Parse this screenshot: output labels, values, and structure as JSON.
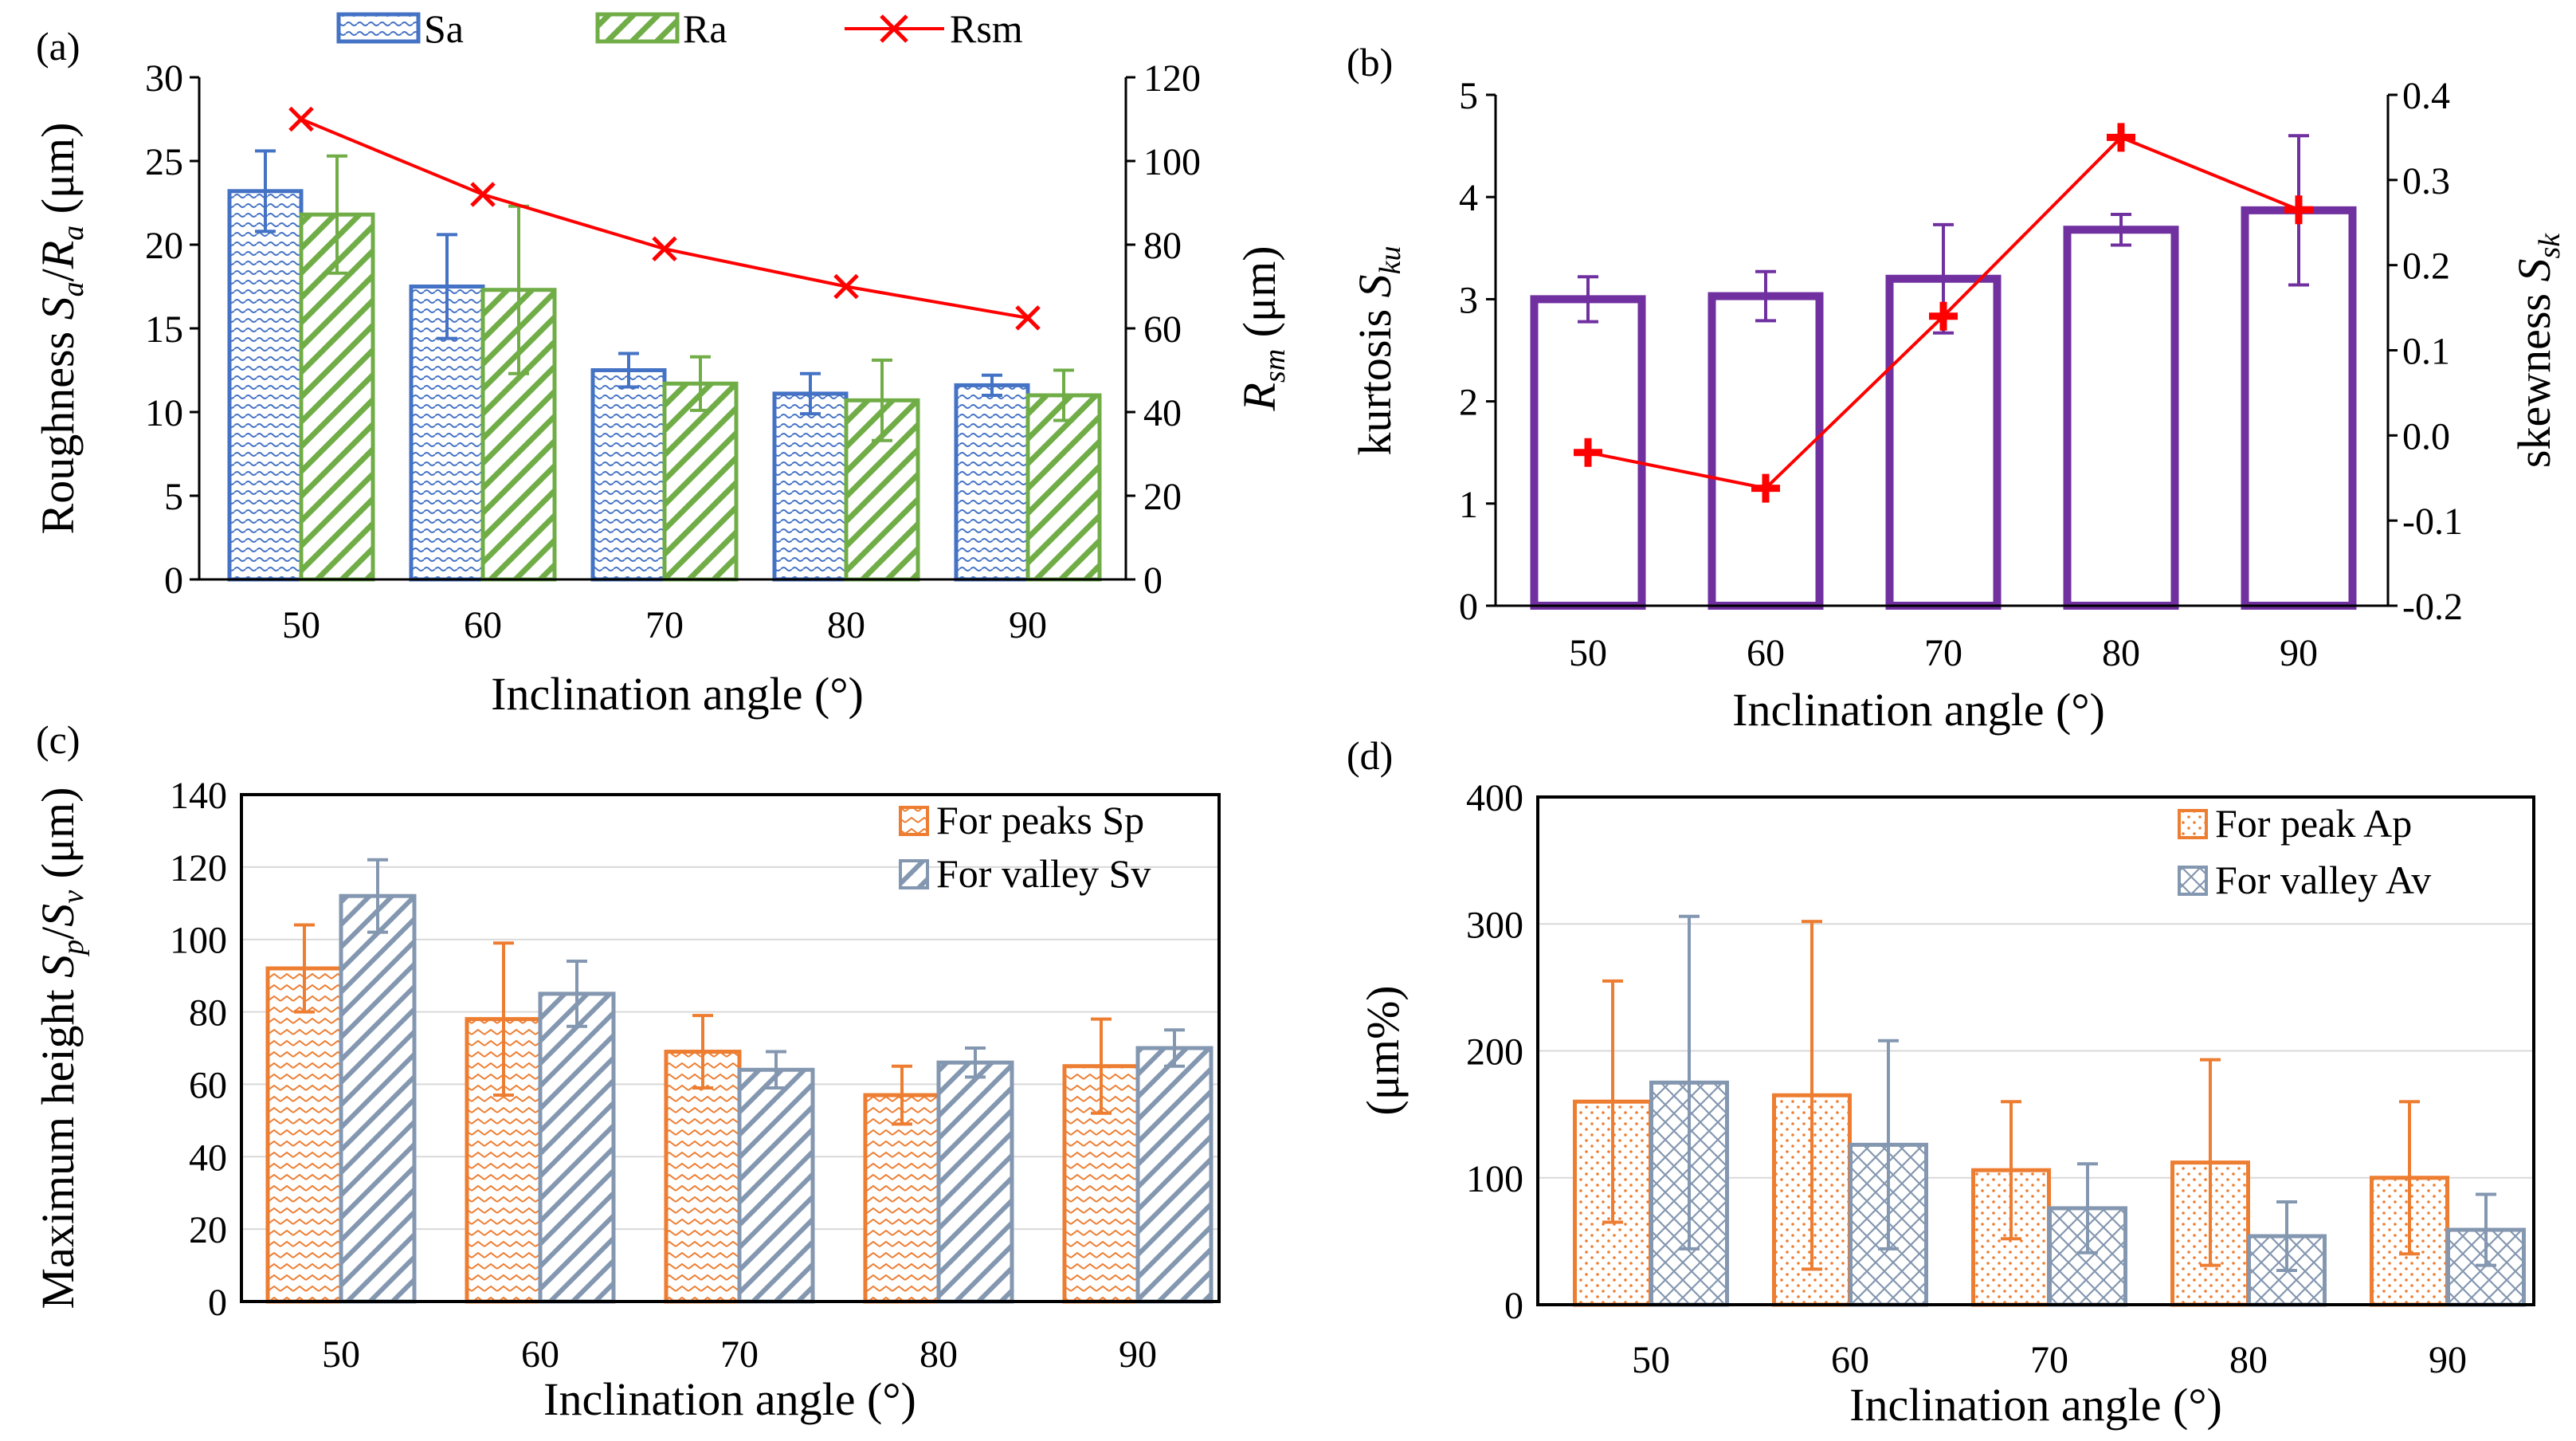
{
  "chart_data": [
    {
      "type": "bar",
      "panel": "(a)",
      "categories": [
        "50",
        "60",
        "70",
        "80",
        "90"
      ],
      "xlabel": "Inclination angle (°)",
      "ylabel": {
        "pre": "Roughness ",
        "v1": "S",
        "s1": "a",
        "mid": "/",
        "v2": "R",
        "s2": "a",
        "post": " (μm)"
      },
      "y2label": {
        "v1": "R",
        "s1": "sm",
        "post": " (μm)"
      },
      "ylim": [
        0,
        30
      ],
      "yticks": [
        "0",
        "5",
        "10",
        "15",
        "20",
        "25",
        "30"
      ],
      "y2lim": [
        0,
        120
      ],
      "y2ticks": [
        "0",
        "20",
        "40",
        "60",
        "80",
        "100",
        "120"
      ],
      "series": [
        {
          "name": "Sa",
          "kind": "bar",
          "color": "#4472c4",
          "values": [
            23.2,
            17.5,
            12.5,
            11.1,
            11.6
          ],
          "err": [
            2.4,
            3.1,
            1.0,
            1.2,
            0.6
          ]
        },
        {
          "name": "Ra",
          "kind": "bar",
          "color": "#70ad47",
          "values": [
            21.8,
            17.3,
            11.7,
            10.7,
            11.0
          ],
          "err": [
            3.5,
            5.0,
            1.6,
            2.4,
            1.5
          ]
        },
        {
          "name": "Rsm",
          "kind": "line",
          "axis": "right",
          "color": "#ff0000",
          "values": [
            110,
            92,
            79,
            70,
            62.5
          ]
        }
      ]
    },
    {
      "type": "bar",
      "panel": "(b)",
      "categories": [
        "50",
        "60",
        "70",
        "80",
        "90"
      ],
      "xlabel": "Inclination angle (°)",
      "ylabel": {
        "pre": "kurtosis ",
        "v1": "S",
        "s1": "ku"
      },
      "y2label": {
        "pre": "skewness ",
        "v1": "S",
        "s1": "sk"
      },
      "ylim": [
        0,
        5
      ],
      "yticks": [
        "0",
        "1",
        "2",
        "3",
        "4",
        "5"
      ],
      "y2lim": [
        -0.2,
        0.4
      ],
      "y2ticks": [
        "-0.2",
        "-0.1",
        "0.0",
        "0.1",
        "0.2",
        "0.3",
        "0.4"
      ],
      "series": [
        {
          "name": "kurtosis",
          "kind": "bar",
          "color": "#7030a0",
          "values": [
            3.0,
            3.03,
            3.2,
            3.68,
            3.87
          ],
          "err": [
            0.22,
            0.24,
            0.53,
            0.15,
            0.73
          ]
        },
        {
          "name": "skewness",
          "kind": "line",
          "axis": "right",
          "color": "#ff0000",
          "values": [
            -0.02,
            -0.062,
            0.14,
            0.35,
            0.265
          ]
        }
      ]
    },
    {
      "type": "bar",
      "panel": "(c)",
      "categories": [
        "50",
        "60",
        "70",
        "80",
        "90"
      ],
      "xlabel": "Inclination angle (°)",
      "ylabel": {
        "pre": "Maximum height ",
        "v1": "S",
        "s1": "p",
        "mid": "/",
        "v2": "S",
        "s2": "v",
        "post": " (μm)"
      },
      "ylim": [
        0,
        140
      ],
      "yticks": [
        "0",
        "20",
        "40",
        "60",
        "80",
        "100",
        "120",
        "140"
      ],
      "series": [
        {
          "name": "For peaks Sp",
          "kind": "bar",
          "color": "#ed7d31",
          "values": [
            92,
            78,
            69,
            57,
            65
          ],
          "err": [
            12,
            21,
            10,
            8,
            13
          ]
        },
        {
          "name": "For valley Sv",
          "kind": "bar",
          "color": "#8497b0",
          "values": [
            112,
            85,
            64,
            66,
            70
          ],
          "err": [
            10,
            9,
            5,
            4,
            5
          ]
        }
      ]
    },
    {
      "type": "bar",
      "panel": "(d)",
      "categories": [
        "50",
        "60",
        "70",
        "80",
        "90"
      ],
      "xlabel": "Inclination angle (°)",
      "ylabel": {
        "pre": "(μm%)"
      },
      "ylim": [
        0,
        400
      ],
      "yticks": [
        "0",
        "100",
        "200",
        "300",
        "400"
      ],
      "series": [
        {
          "name": "For peak Ap",
          "kind": "bar",
          "color": "#ed7d31",
          "values": [
            160,
            165,
            106,
            112,
            100
          ],
          "err": [
            95,
            137,
            54,
            81,
            60
          ]
        },
        {
          "name": "For valley Av",
          "kind": "bar",
          "color": "#8497b0",
          "values": [
            175,
            126,
            76,
            54,
            59
          ],
          "err": [
            131,
            82,
            35,
            27,
            28
          ]
        }
      ]
    }
  ]
}
